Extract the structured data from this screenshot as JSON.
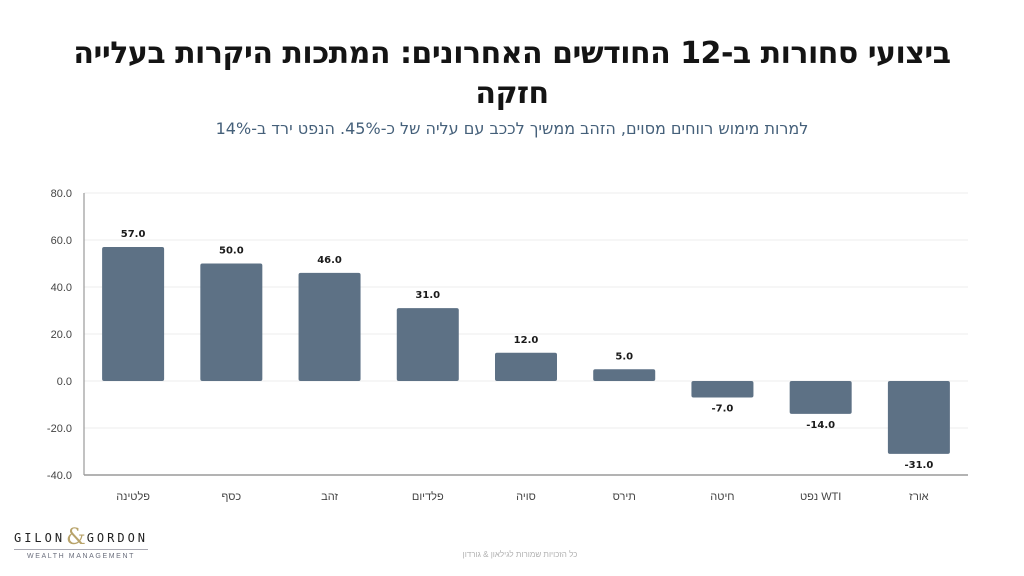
{
  "header": {
    "title": "ביצועי סחורות ב-12 החודשים האחרונים: המתכות היקרות בעלייה חזקה",
    "subtitle": "למרות מימוש רווחים מסוים, הזהב ממשיך לככב עם עליה של כ-45%. הנפט ירד ב-14%"
  },
  "chart_data": {
    "type": "bar",
    "title": "",
    "xlabel": "",
    "ylabel": "",
    "categories": [
      "פלטינה",
      "כסף",
      "זהב",
      "פלדיום",
      "סויה",
      "תירס",
      "חיטה",
      "WTI נפט",
      "אורז"
    ],
    "values": [
      57.0,
      50.0,
      46.0,
      31.0,
      12.0,
      5.0,
      -7.0,
      -14.0,
      -31.0
    ],
    "value_labels": [
      "57.0",
      "50.0",
      "46.0",
      "31.0",
      "12.0",
      "5.0",
      "-7.0",
      "-14.0",
      "-31.0"
    ],
    "ylim": [
      -40,
      80
    ],
    "yticks": [
      80,
      60,
      40,
      20,
      0,
      -20,
      -40
    ],
    "ytick_labels": [
      "80.0",
      "60.0",
      "40.0",
      "20.0",
      "0.0",
      "-20.0",
      "-40.0"
    ],
    "grid": true,
    "legend": "none",
    "bar_color": "#5d7185"
  },
  "branding": {
    "logo_left": "GILON",
    "logo_amp": "&",
    "logo_right": "GORDON",
    "logo_sub": "WEALTH MANAGEMENT"
  },
  "footer": {
    "copyright": "כל הזכויות שמורות לגילאון & גורדון"
  }
}
